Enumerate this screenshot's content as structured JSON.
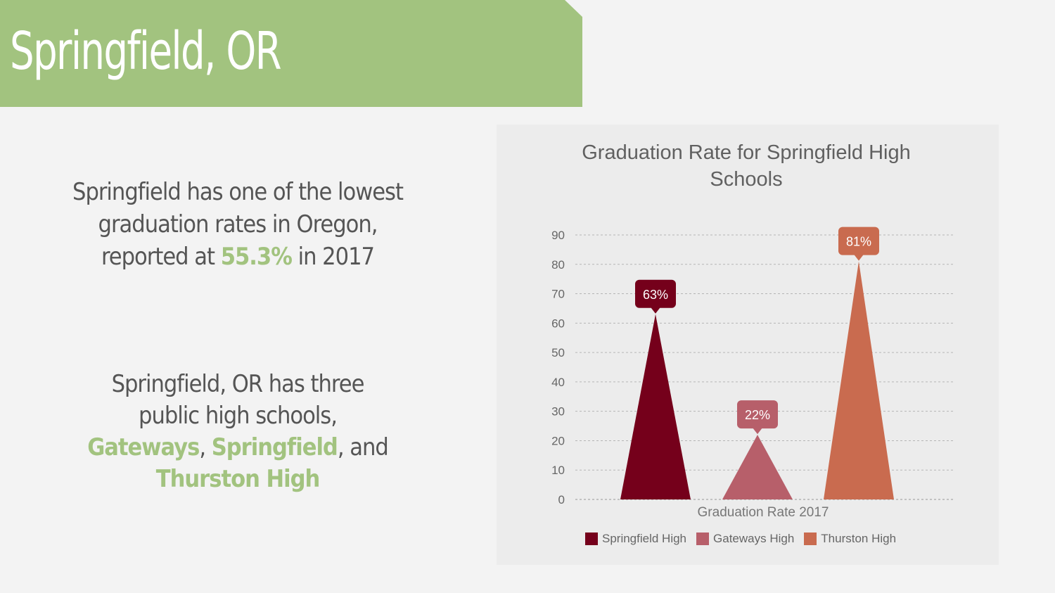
{
  "slide": {
    "title": "Springfield, OR",
    "para1": {
      "line1": "Springfield has one of the lowest",
      "line2": "graduation rates in Oregon,",
      "line3_pre": "reported at ",
      "line3_highlight": "55.3%",
      "line3_post": " in 2017"
    },
    "para2": {
      "line1": "Springfield, OR has three",
      "line2": "public high schools,",
      "school1": "Gateways",
      "sep1": ", ",
      "school2": "Springfield",
      "sep2": ", and",
      "school3": "Thurston High"
    }
  },
  "colors": {
    "banner": "#a2c37f",
    "highlight": "#a2c37f"
  },
  "chart_data": {
    "type": "bar",
    "title": "Graduation Rate for Springfield High Schools",
    "title_line1": "Graduation Rate for Springfield High",
    "title_line2": "Schools",
    "categories": [
      "Graduation Rate 2017"
    ],
    "xlabel": "Graduation Rate 2017",
    "ylabel": "",
    "ylim": [
      0,
      90
    ],
    "yticks": [
      0,
      10,
      20,
      30,
      40,
      50,
      60,
      70,
      80,
      90
    ],
    "grid": true,
    "legend_position": "bottom",
    "series": [
      {
        "name": "Springfield High",
        "values": [
          63
        ],
        "label": "63%",
        "color": "#75001b"
      },
      {
        "name": "Gateways High",
        "values": [
          22
        ],
        "label": "22%",
        "color": "#b75f6a"
      },
      {
        "name": "Thurston High",
        "values": [
          81
        ],
        "label": "81%",
        "color": "#c96b4f"
      }
    ]
  }
}
